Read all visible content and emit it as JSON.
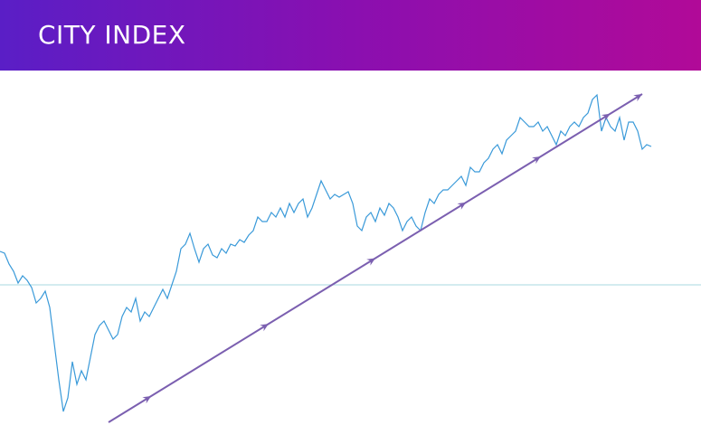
{
  "brand": "CITY INDEX",
  "chart_data": {
    "type": "line",
    "values": [
      213,
      211,
      199,
      191,
      178,
      186,
      181,
      173,
      156,
      161,
      169,
      151,
      111,
      71,
      36,
      51,
      91,
      66,
      81,
      71,
      96,
      121,
      131,
      136,
      126,
      116,
      121,
      141,
      151,
      146,
      161,
      136,
      146,
      141,
      151,
      161,
      171,
      161,
      176,
      191,
      216,
      221,
      233,
      216,
      201,
      216,
      221,
      209,
      206,
      216,
      211,
      221,
      219,
      226,
      223,
      231,
      236,
      251,
      246,
      246,
      256,
      251,
      261,
      251,
      266,
      256,
      266,
      271,
      251,
      261,
      276,
      291,
      281,
      271,
      276,
      273,
      276,
      279,
      266,
      241,
      236,
      251,
      256,
      246,
      261,
      253,
      266,
      261,
      251,
      236,
      246,
      251,
      241,
      236,
      256,
      271,
      266,
      276,
      281,
      281,
      286,
      291,
      296,
      286,
      306,
      301,
      301,
      311,
      316,
      326,
      331,
      321,
      336,
      341,
      346,
      361,
      356,
      351,
      351,
      356,
      346,
      351,
      341,
      331,
      346,
      341,
      351,
      356,
      351,
      361,
      366,
      381,
      386,
      346,
      361,
      351,
      346,
      361,
      336,
      356,
      356,
      346,
      326,
      331,
      329
    ],
    "color": "#3a9ad9",
    "ylim": [
      0,
      413
    ],
    "reference_line": 176,
    "trend_line": {
      "x": [
        24,
        142
      ],
      "values": [
        24,
        387
      ],
      "color": "#7b5fb0"
    }
  }
}
